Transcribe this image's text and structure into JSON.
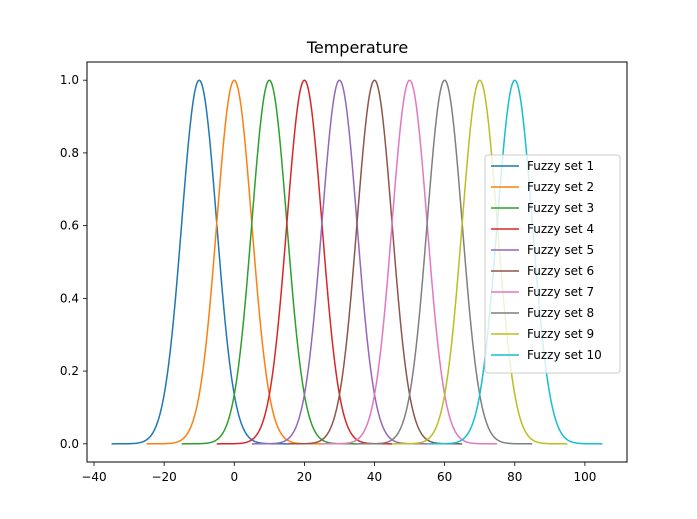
{
  "chart_data": {
    "type": "line",
    "title": "Temperature",
    "xlabel": "",
    "ylabel": "",
    "xlim": [
      -42,
      112
    ],
    "ylim": [
      -0.05,
      1.05
    ],
    "x_ticks": [
      -40,
      -20,
      0,
      20,
      40,
      60,
      80,
      100
    ],
    "x_tick_labels": [
      "−40",
      "−20",
      "0",
      "20",
      "40",
      "60",
      "80",
      "100"
    ],
    "y_ticks": [
      0.0,
      0.2,
      0.4,
      0.6,
      0.8,
      1.0
    ],
    "y_tick_labels": [
      "0.0",
      "0.2",
      "0.4",
      "0.6",
      "0.8",
      "1.0"
    ],
    "grid": false,
    "legend_position": "center-right",
    "curve_shape": "gaussian",
    "sigma": 5,
    "series": [
      {
        "name": "Fuzzy set 1",
        "center": -10,
        "x_range": [
          -35,
          15
        ],
        "color": "#1f77b4"
      },
      {
        "name": "Fuzzy set 2",
        "center": 0,
        "x_range": [
          -25,
          25
        ],
        "color": "#ff7f0e"
      },
      {
        "name": "Fuzzy set 3",
        "center": 10,
        "x_range": [
          -15,
          35
        ],
        "color": "#2ca02c"
      },
      {
        "name": "Fuzzy set 4",
        "center": 20,
        "x_range": [
          -5,
          45
        ],
        "color": "#d62728"
      },
      {
        "name": "Fuzzy set 5",
        "center": 30,
        "x_range": [
          5,
          55
        ],
        "color": "#9467bd"
      },
      {
        "name": "Fuzzy set 6",
        "center": 40,
        "x_range": [
          15,
          65
        ],
        "color": "#8c564b"
      },
      {
        "name": "Fuzzy set 7",
        "center": 50,
        "x_range": [
          25,
          75
        ],
        "color": "#e377c2"
      },
      {
        "name": "Fuzzy set 8",
        "center": 60,
        "x_range": [
          35,
          85
        ],
        "color": "#7f7f7f"
      },
      {
        "name": "Fuzzy set 9",
        "center": 70,
        "x_range": [
          45,
          95
        ],
        "color": "#bcbd22"
      },
      {
        "name": "Fuzzy set 10",
        "center": 80,
        "x_range": [
          55,
          105
        ],
        "color": "#17becf"
      }
    ]
  }
}
